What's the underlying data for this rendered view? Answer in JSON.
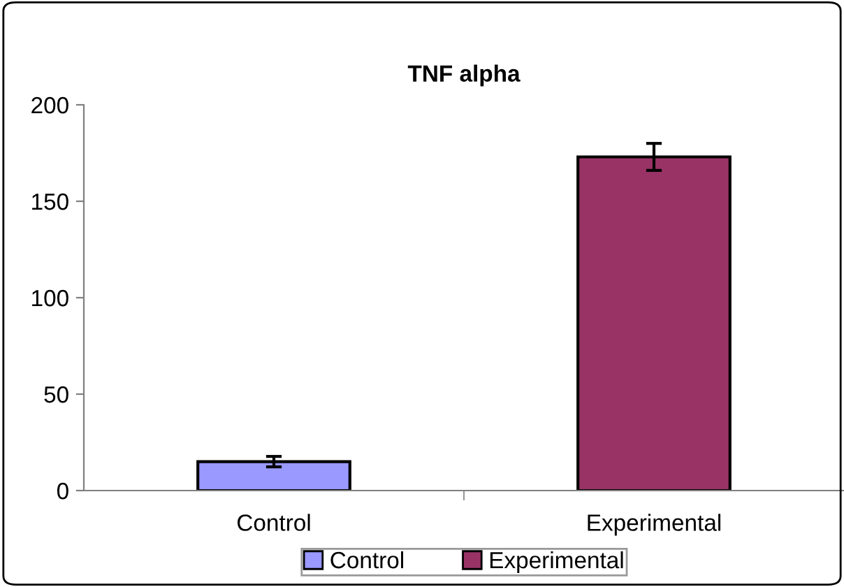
{
  "chart_data": {
    "type": "bar",
    "title": "TNF alpha",
    "categories": [
      "Control",
      "Experimental"
    ],
    "series": [
      {
        "name": "Control",
        "color": "#9999ff",
        "values": [
          15,
          null
        ],
        "errors": [
          2.7,
          null
        ]
      },
      {
        "name": "Experimental",
        "color": "#993366",
        "values": [
          null,
          173
        ],
        "errors": [
          null,
          7
        ]
      }
    ],
    "ylim": [
      0,
      200
    ],
    "yticks": [
      0,
      50,
      100,
      150,
      200
    ],
    "grid": false,
    "legend": "bottom"
  }
}
